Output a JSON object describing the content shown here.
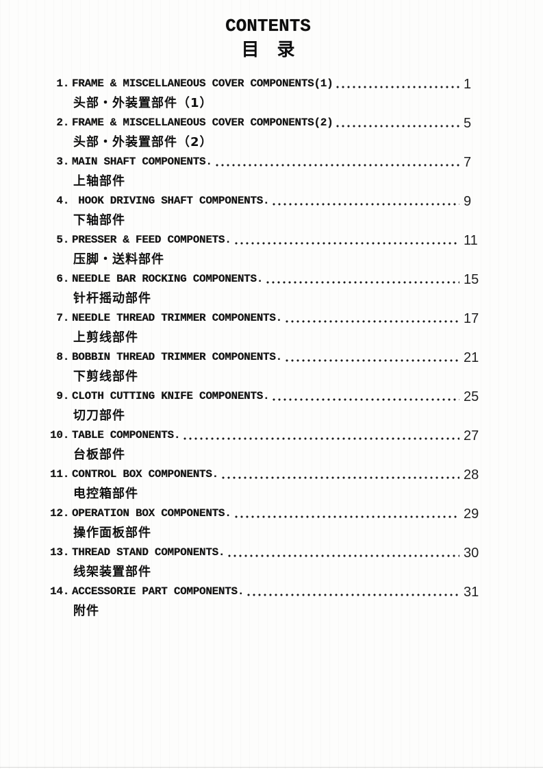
{
  "header": {
    "title_en": "CONTENTS",
    "title_cn": "目　录"
  },
  "toc": {
    "items": [
      {
        "num": "1.",
        "title": "FRAME & MISCELLANEOUS COVER COMPONENTS(1)",
        "subtitle": "头部・外装置部件（1）",
        "page": "1"
      },
      {
        "num": "2.",
        "title": "FRAME & MISCELLANEOUS COVER COMPONENTS(2)",
        "subtitle": "头部・外装置部件（2）",
        "page": "5"
      },
      {
        "num": "3.",
        "title": "MAIN SHAFT COMPONENTS.",
        "subtitle": "上轴部件",
        "page": "7"
      },
      {
        "num": "4.",
        "title": " HOOK DRIVING SHAFT COMPONENTS.",
        "subtitle": "下轴部件",
        "page": "9"
      },
      {
        "num": "5.",
        "title": "PRESSER & FEED COMPONETS.",
        "subtitle": "压脚・送料部件",
        "page": "11"
      },
      {
        "num": "6.",
        "title": "NEEDLE BAR ROCKING COMPONENTS.",
        "subtitle": "针杆摇动部件",
        "page": "15"
      },
      {
        "num": "7.",
        "title": "NEEDLE THREAD TRIMMER COMPONENTS.",
        "subtitle": "上剪线部件",
        "page": "17"
      },
      {
        "num": "8.",
        "title": "BOBBIN THREAD TRIMMER COMPONENTS.",
        "subtitle": "下剪线部件",
        "page": "21"
      },
      {
        "num": "9.",
        "title": "CLOTH CUTTING KNIFE COMPONENTS.",
        "subtitle": "切刀部件",
        "page": "25"
      },
      {
        "num": "10.",
        "title": "TABLE COMPONENTS.",
        "subtitle": "台板部件",
        "page": "27"
      },
      {
        "num": "11.",
        "title": "CONTROL BOX COMPONENTS.",
        "subtitle": "电控箱部件",
        "page": "28"
      },
      {
        "num": "12.",
        "title": "OPERATION BOX COMPONENTS.",
        "subtitle": "操作面板部件",
        "page": "29"
      },
      {
        "num": "13.",
        "title": "THREAD STAND COMPONENTS.",
        "subtitle": "线架装置部件",
        "page": "30"
      },
      {
        "num": "14.",
        "title": "ACCESSORIE PART COMPONENTS.",
        "subtitle": "附件",
        "page": "31"
      }
    ]
  }
}
